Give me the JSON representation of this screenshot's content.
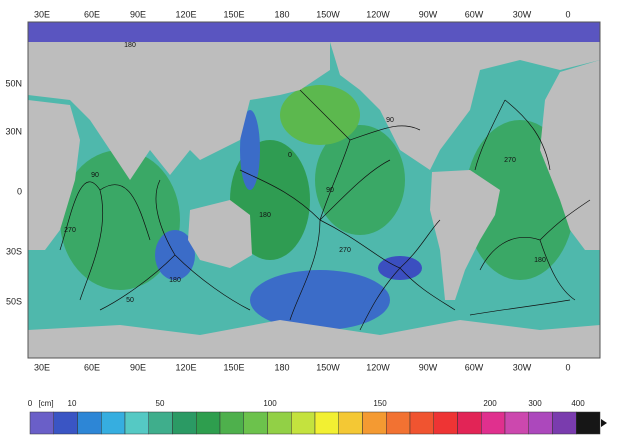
{
  "map": {
    "top_labels": [
      "30E",
      "60E",
      "90E",
      "120E",
      "150E",
      "180",
      "150W",
      "120W",
      "90W",
      "60W",
      "30W",
      "0"
    ],
    "bottom_labels": [
      "30E",
      "60E",
      "90E",
      "120E",
      "150E",
      "180",
      "150W",
      "120W",
      "90W",
      "60W",
      "30W",
      "0"
    ],
    "left_labels": [
      "50N",
      "30N",
      "0",
      "30S",
      "50S"
    ],
    "contour_labels": [
      "180",
      "90",
      "270",
      "0",
      "180",
      "90",
      "270",
      "180",
      "90",
      "270",
      "180",
      "50"
    ],
    "colorbar": {
      "labels": [
        "0",
        "[cm]",
        "10",
        "50",
        "100",
        "150",
        "200",
        "300",
        "400"
      ],
      "colors": [
        "#6a5fc8",
        "#3a55c4",
        "#2d86d6",
        "#36aee0",
        "#55c9c4",
        "#3fae8c",
        "#2b9a64",
        "#2e9e4e",
        "#4eb04c",
        "#6cc24c",
        "#92d046",
        "#c4e23e",
        "#f2f032",
        "#f4c834",
        "#f49a32",
        "#f27232",
        "#f05430",
        "#ee3434",
        "#e22456",
        "#e0308e",
        "#cc48ae",
        "#ac48bc",
        "#7a3cae",
        "#161616"
      ]
    }
  }
}
